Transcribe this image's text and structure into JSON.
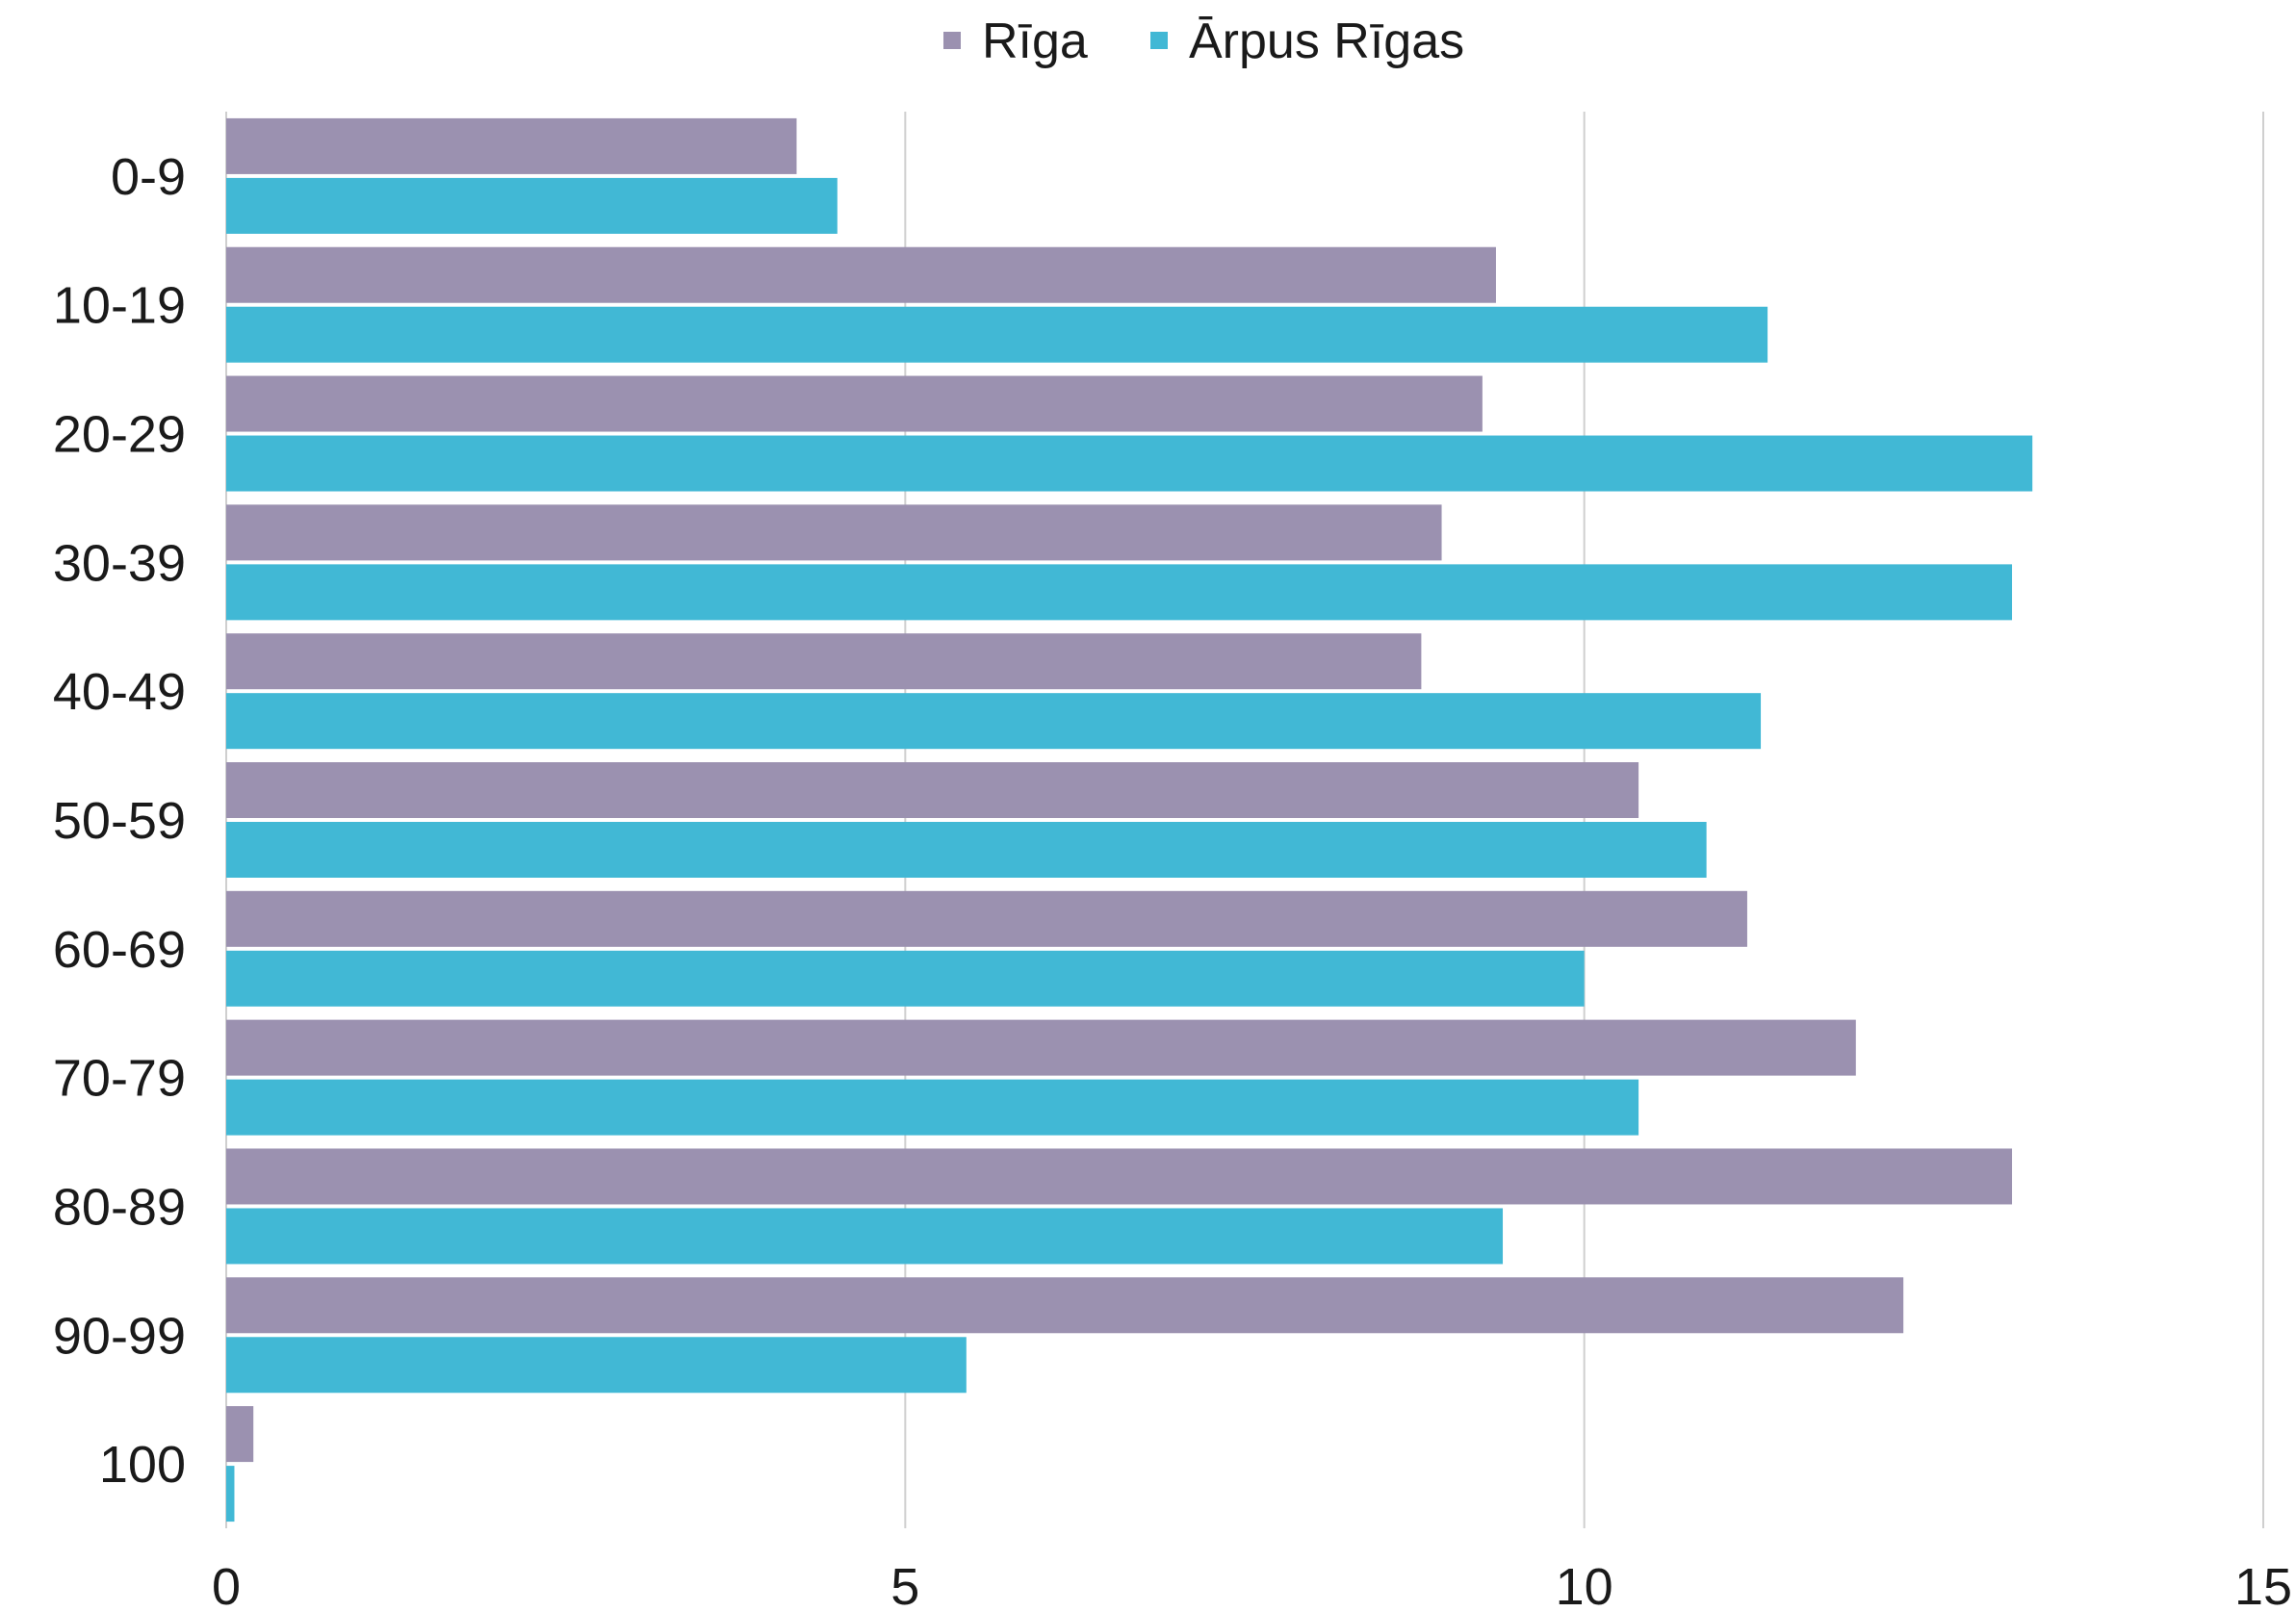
{
  "chart_data": {
    "type": "bar",
    "orientation": "horizontal",
    "categories": [
      "0-9",
      "10-19",
      "20-29",
      "30-39",
      "40-49",
      "50-59",
      "60-69",
      "70-79",
      "80-89",
      "90-99",
      "100"
    ],
    "series": [
      {
        "name": "Rīga",
        "color": "#9b91b0",
        "values": [
          4.2,
          9.35,
          9.25,
          8.95,
          8.8,
          10.4,
          11.2,
          12.0,
          13.15,
          12.35,
          0.2
        ]
      },
      {
        "name": "Ārpus Rīgas",
        "color": "#41b8d5",
        "values": [
          4.5,
          11.35,
          13.3,
          13.15,
          11.3,
          10.9,
          10.0,
          10.4,
          9.4,
          5.45,
          0.06
        ]
      }
    ],
    "xlim": [
      0,
      15
    ],
    "xticks": [
      0,
      5,
      10,
      15
    ],
    "grid": true,
    "legend_position": "top-center"
  }
}
